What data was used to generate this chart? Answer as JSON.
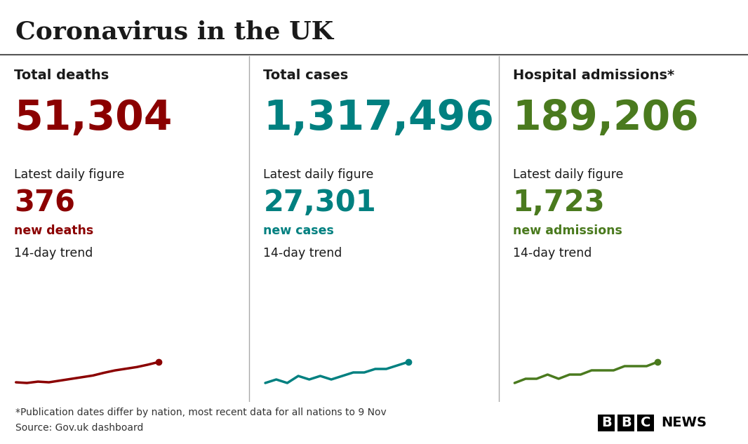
{
  "title": "Coronavirus in the UK",
  "bg_color": "#ffffff",
  "title_color": "#1a1a1a",
  "divider_color": "#555555",
  "footnote1": "*Publication dates differ by nation, most recent data for all nations to 9 Nov",
  "footnote2": "Source: Gov.uk dashboard",
  "columns": [
    {
      "label": "Total deaths",
      "total": "51,304",
      "total_color": "#8b0000",
      "daily_label": "Latest daily figure",
      "daily_value": "376",
      "daily_value_color": "#8b0000",
      "daily_sub": "new deaths",
      "daily_sub_color": "#8b0000",
      "trend_label": "14-day trend",
      "trend_color": "#8b0000",
      "trend_x": [
        0,
        1,
        2,
        3,
        4,
        5,
        6,
        7,
        8,
        9,
        10,
        11,
        12,
        13
      ],
      "trend_y": [
        0.1,
        0.08,
        0.12,
        0.1,
        0.15,
        0.2,
        0.25,
        0.3,
        0.38,
        0.45,
        0.5,
        0.55,
        0.62,
        0.7
      ]
    },
    {
      "label": "Total cases",
      "total": "1,317,496",
      "total_color": "#008080",
      "daily_label": "Latest daily figure",
      "daily_value": "27,301",
      "daily_value_color": "#008080",
      "daily_sub": "new cases",
      "daily_sub_color": "#008080",
      "trend_label": "14-day trend",
      "trend_color": "#008080",
      "trend_x": [
        0,
        1,
        2,
        3,
        4,
        5,
        6,
        7,
        8,
        9,
        10,
        11,
        12,
        13
      ],
      "trend_y": [
        0.3,
        0.31,
        0.3,
        0.32,
        0.31,
        0.32,
        0.31,
        0.32,
        0.33,
        0.33,
        0.34,
        0.34,
        0.35,
        0.36
      ]
    },
    {
      "label": "Hospital admissions*",
      "total": "189,206",
      "total_color": "#4a7a1e",
      "daily_label": "Latest daily figure",
      "daily_value": "1,723",
      "daily_value_color": "#4a7a1e",
      "daily_sub": "new admissions",
      "daily_sub_color": "#4a7a1e",
      "trend_label": "14-day trend",
      "trend_color": "#4a7a1e",
      "trend_x": [
        0,
        1,
        2,
        3,
        4,
        5,
        6,
        7,
        8,
        9,
        10,
        11,
        12,
        13
      ],
      "trend_y": [
        0.3,
        0.31,
        0.31,
        0.32,
        0.31,
        0.32,
        0.32,
        0.33,
        0.33,
        0.33,
        0.34,
        0.34,
        0.34,
        0.35
      ]
    }
  ],
  "figsize": [
    10.66,
    6.33
  ],
  "dpi": 100
}
